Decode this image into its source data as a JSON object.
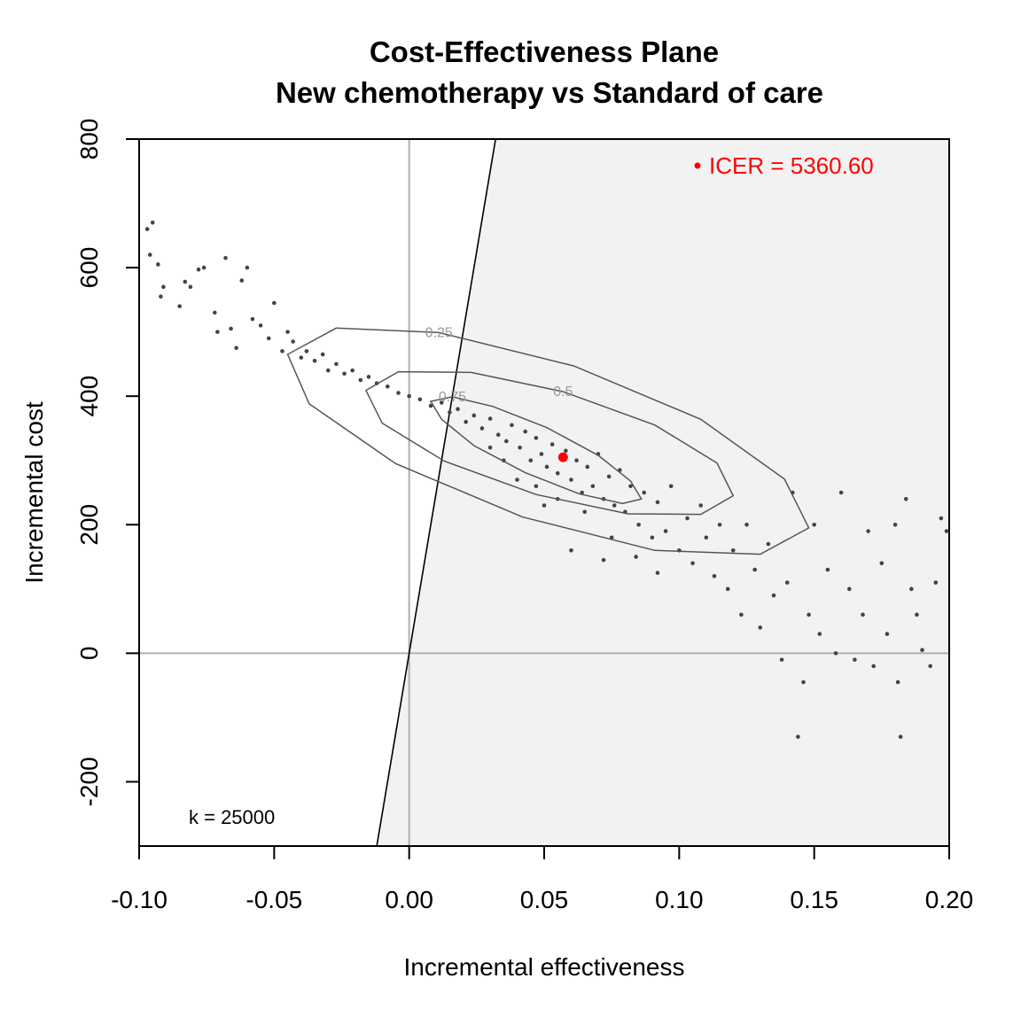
{
  "chart_data": {
    "type": "scatter",
    "title": [
      "Cost-Effectiveness Plane",
      "New chemotherapy vs Standard of care"
    ],
    "x_label": "Incremental effectiveness",
    "y_label": "Incremental cost",
    "xlim": [
      -0.1,
      0.2
    ],
    "ylim": [
      -300,
      800
    ],
    "xticks": [
      {
        "value": -0.1,
        "label": "-0.10"
      },
      {
        "value": -0.05,
        "label": "-0.05"
      },
      {
        "value": 0,
        "label": "0.00"
      },
      {
        "value": 0.05,
        "label": "0.05"
      },
      {
        "value": 0.1,
        "label": "0.10"
      },
      {
        "value": 0.15,
        "label": "0.15"
      },
      {
        "value": 0.2,
        "label": "0.20"
      }
    ],
    "yticks": [
      -200,
      0,
      200,
      400,
      600,
      800
    ],
    "k": 25000,
    "k_label": "k = 25000",
    "region_color": "#f2f2f2",
    "icer": {
      "x": 0.057,
      "y": 305,
      "label": "ICER = 5360.60",
      "color": "#ff0000"
    },
    "point_color": "#444444",
    "x": [
      -0.097,
      -0.095,
      -0.096,
      -0.093,
      -0.091,
      -0.092,
      -0.085,
      -0.083,
      -0.081,
      -0.078,
      -0.076,
      -0.072,
      -0.071,
      -0.068,
      -0.066,
      -0.064,
      -0.062,
      -0.06,
      -0.058,
      -0.055,
      -0.052,
      -0.05,
      -0.047,
      -0.045,
      -0.043,
      -0.04,
      -0.038,
      -0.035,
      -0.032,
      -0.03,
      -0.027,
      -0.024,
      -0.021,
      -0.018,
      -0.015,
      -0.012,
      -0.008,
      -0.004,
      0.0,
      0.004,
      0.008,
      0.012,
      0.015,
      0.018,
      0.021,
      0.024,
      0.027,
      0.03,
      0.033,
      0.036,
      0.038,
      0.041,
      0.043,
      0.045,
      0.047,
      0.049,
      0.051,
      0.053,
      0.055,
      0.058,
      0.06,
      0.062,
      0.064,
      0.066,
      0.068,
      0.07,
      0.072,
      0.074,
      0.076,
      0.078,
      0.08,
      0.082,
      0.085,
      0.087,
      0.09,
      0.092,
      0.095,
      0.097,
      0.1,
      0.103,
      0.105,
      0.108,
      0.11,
      0.113,
      0.115,
      0.118,
      0.12,
      0.123,
      0.125,
      0.128,
      0.13,
      0.133,
      0.135,
      0.138,
      0.14,
      0.142,
      0.144,
      0.146,
      0.148,
      0.15,
      0.152,
      0.155,
      0.158,
      0.16,
      0.163,
      0.165,
      0.168,
      0.17,
      0.172,
      0.175,
      0.177,
      0.18,
      0.181,
      0.182,
      0.184,
      0.186,
      0.188,
      0.19,
      0.193,
      0.195,
      0.197,
      0.199,
      0.047,
      0.05,
      0.055,
      0.065,
      0.075,
      0.084,
      0.092,
      0.06,
      0.072,
      0.04,
      0.035,
      0.03
    ],
    "y": [
      660,
      670,
      620,
      605,
      570,
      555,
      540,
      578,
      570,
      597,
      600,
      530,
      500,
      615,
      505,
      475,
      580,
      600,
      520,
      510,
      490,
      545,
      470,
      500,
      485,
      460,
      470,
      455,
      465,
      440,
      450,
      435,
      440,
      425,
      430,
      420,
      415,
      405,
      400,
      395,
      385,
      390,
      375,
      380,
      360,
      370,
      350,
      365,
      340,
      330,
      355,
      320,
      345,
      300,
      335,
      310,
      290,
      325,
      280,
      315,
      270,
      300,
      250,
      290,
      260,
      310,
      240,
      275,
      230,
      285,
      220,
      260,
      200,
      250,
      180,
      235,
      190,
      260,
      160,
      210,
      140,
      230,
      180,
      120,
      200,
      100,
      160,
      60,
      200,
      130,
      40,
      170,
      90,
      -10,
      110,
      250,
      -130,
      -45,
      60,
      200,
      30,
      130,
      0,
      250,
      100,
      -10,
      60,
      190,
      -20,
      140,
      30,
      200,
      -45,
      -130,
      240,
      100,
      60,
      5,
      -20,
      110,
      210,
      190,
      260,
      230,
      240,
      220,
      180,
      150,
      125,
      160,
      145,
      270,
      300,
      320
    ],
    "contour_color": "#555555",
    "contours": [
      {
        "level": 0.25,
        "x": [
          0.148,
          0.13,
          0.091,
          0.042,
          -0.005,
          -0.037,
          -0.045,
          -0.027,
          0.011,
          0.061,
          0.108,
          0.139
        ],
        "y": [
          195,
          154,
          160,
          212,
          295,
          388,
          465,
          506,
          499,
          447,
          364,
          271
        ]
      },
      {
        "level": 0.5,
        "x": [
          0.12,
          0.108,
          0.081,
          0.047,
          0.013,
          -0.01,
          -0.016,
          -0.004,
          0.023,
          0.057,
          0.091,
          0.114
        ],
        "y": [
          245,
          216,
          217,
          247,
          299,
          358,
          409,
          438,
          437,
          407,
          355,
          296
        ]
      },
      {
        "level": 0.75,
        "x": [
          0.086,
          0.079,
          0.063,
          0.043,
          0.024,
          0.012,
          0.008,
          0.016,
          0.031,
          0.051,
          0.07,
          0.082
        ],
        "y": [
          240,
          233,
          248,
          281,
          323,
          364,
          392,
          399,
          384,
          351,
          308,
          268
        ]
      }
    ]
  }
}
